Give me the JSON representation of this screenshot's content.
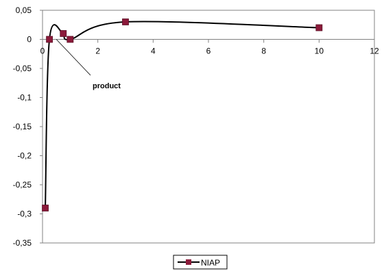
{
  "chart_data": {
    "type": "line",
    "title": "",
    "xlabel": "",
    "ylabel": "",
    "xlim": [
      0,
      12
    ],
    "ylim": [
      -0.35,
      0.05
    ],
    "x_ticks": [
      0,
      2,
      4,
      6,
      8,
      10,
      12
    ],
    "x_tick_labels": [
      "0",
      "2",
      "4",
      "6",
      "8",
      "10",
      "12"
    ],
    "y_ticks": [
      0.05,
      0,
      -0.05,
      -0.1,
      -0.15,
      -0.2,
      -0.25,
      -0.3,
      -0.35
    ],
    "y_tick_labels": [
      "0,05",
      "0",
      "-0,05",
      "-0,1",
      "-0,15",
      "-0,2",
      "-0,25",
      "-0,3",
      "-0,35"
    ],
    "grid": false,
    "smoothed": true,
    "legend_position": "bottom",
    "series": [
      {
        "name": "NIAP",
        "color": "#000000",
        "marker_color": "#8b1a3a",
        "marker": "square",
        "x": [
          0.1,
          0.25,
          0.75,
          1,
          3,
          10
        ],
        "y": [
          -0.29,
          0,
          0.01,
          0,
          0.03,
          0.02
        ]
      }
    ],
    "annotations": [
      {
        "text": "product",
        "x": 0.5,
        "y": 0
      }
    ]
  }
}
